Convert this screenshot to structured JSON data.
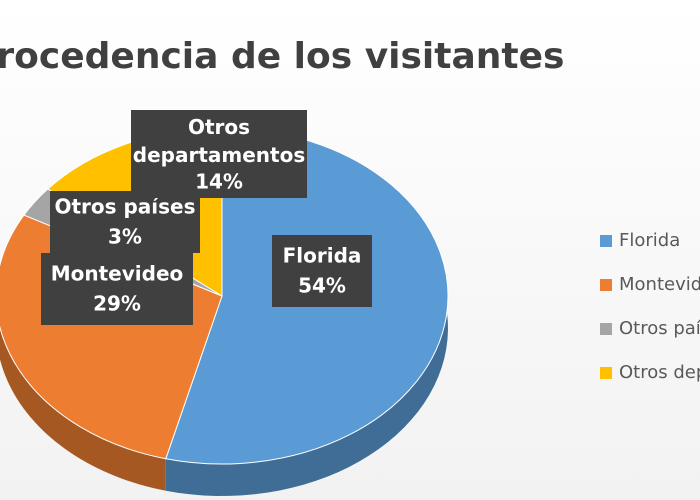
{
  "chart_data": {
    "type": "pie3d",
    "title": "Procedencia de los visitantes",
    "categories": [
      "Florida",
      "Montevideo",
      "Otros países",
      "Otros departamentos"
    ],
    "values": [
      54,
      29,
      3,
      14
    ],
    "value_labels": [
      "54%",
      "29%",
      "3%",
      "14%"
    ],
    "colors": [
      "#5b9bd5",
      "#ed7d31",
      "#a5a5a5",
      "#ffc000"
    ],
    "legend": "right"
  }
}
